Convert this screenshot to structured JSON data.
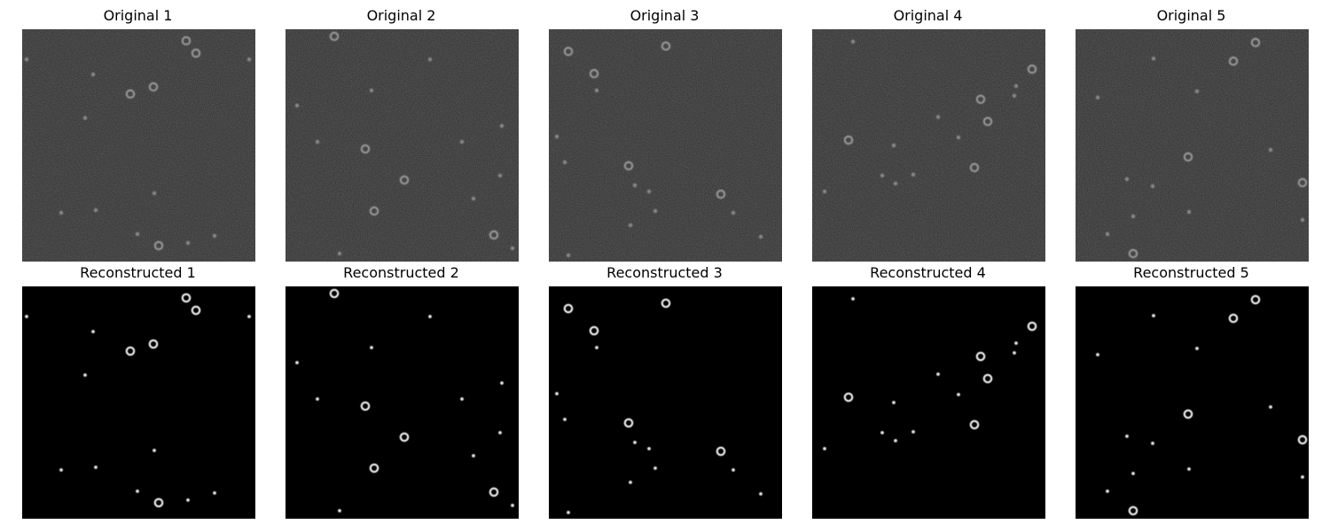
{
  "colors": {
    "original_bg": "#2b2b2b",
    "reconstructed_bg": "#000000"
  },
  "panels": {
    "original": [
      {
        "title": "Original 1"
      },
      {
        "title": "Original 2"
      },
      {
        "title": "Original 3"
      },
      {
        "title": "Original 4"
      },
      {
        "title": "Original 5"
      }
    ],
    "reconstructed": [
      {
        "title": "Reconstructed 1"
      },
      {
        "title": "Reconstructed 2"
      },
      {
        "title": "Reconstructed 3"
      },
      {
        "title": "Reconstructed 4"
      },
      {
        "title": "Reconstructed 5"
      }
    ]
  }
}
